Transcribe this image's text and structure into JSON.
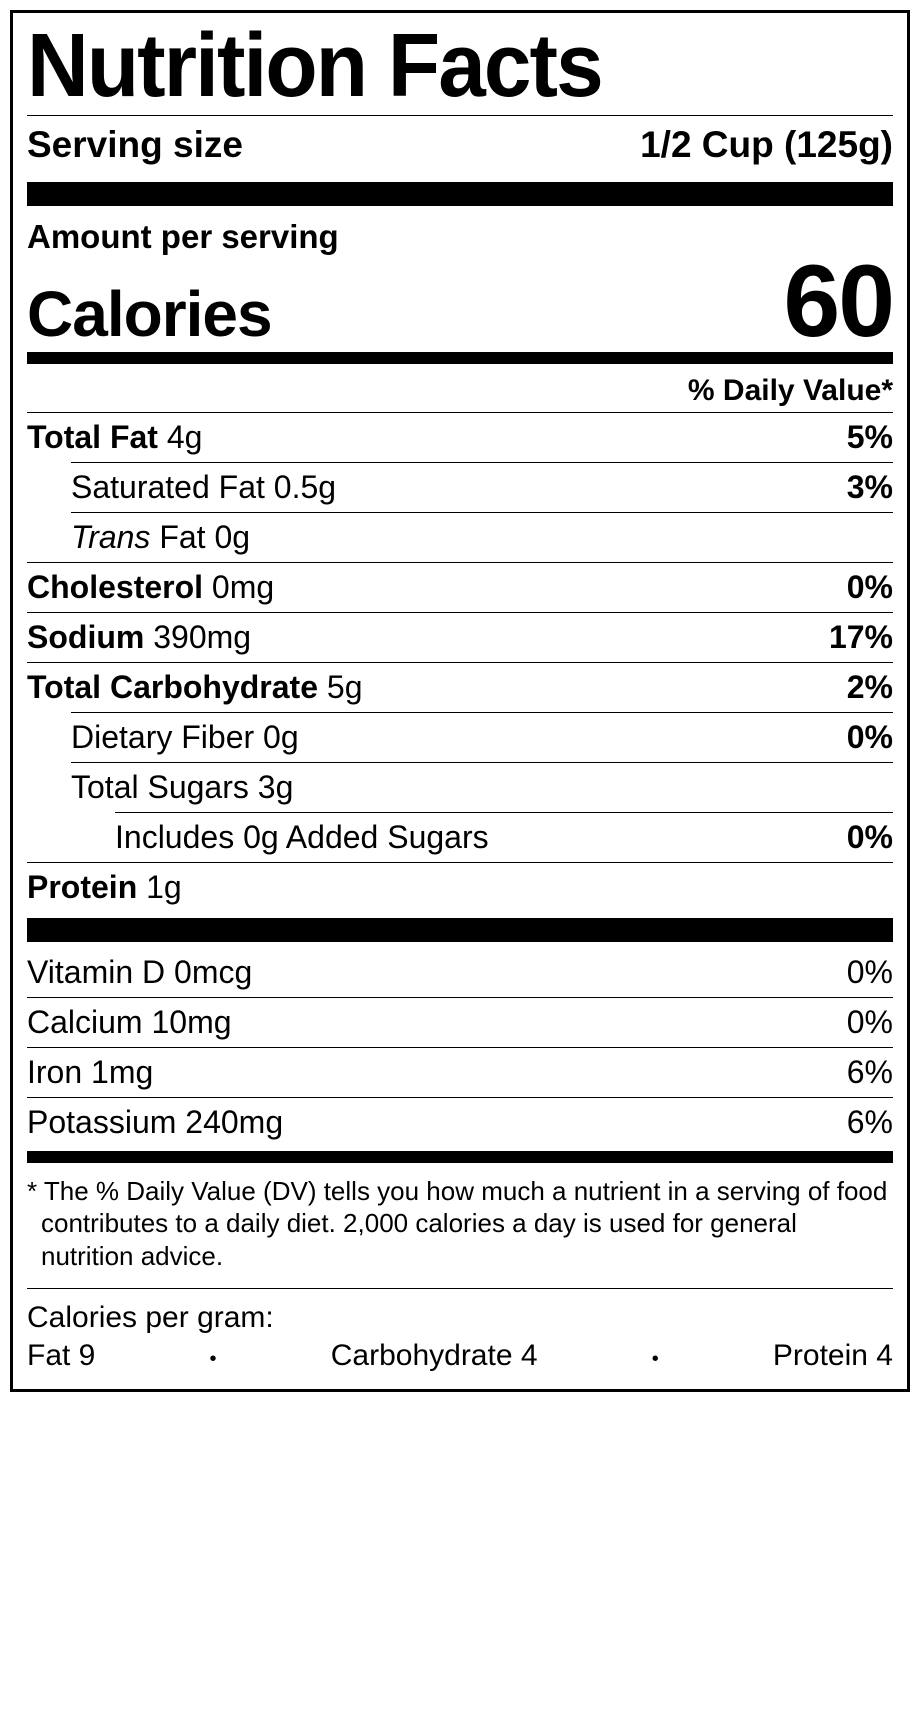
{
  "title": "Nutrition Facts",
  "serving": {
    "label": "Serving size",
    "value": "1/2 Cup (125g)"
  },
  "amountLabel": "Amount per serving",
  "calories": {
    "label": "Calories",
    "value": "60"
  },
  "dvHeader": "% Daily Value*",
  "nutrients": {
    "totalFat": {
      "name": "Total Fat",
      "amount": "4g",
      "dv": "5%"
    },
    "satFat": {
      "name": "Saturated Fat",
      "amount": "0.5g",
      "dv": "3%"
    },
    "transFat": {
      "prefix": "Trans",
      "suffix": " Fat",
      "amount": "0g"
    },
    "cholesterol": {
      "name": "Cholesterol",
      "amount": "0mg",
      "dv": "0%"
    },
    "sodium": {
      "name": "Sodium",
      "amount": "390mg",
      "dv": "17%"
    },
    "totalCarb": {
      "name": "Total Carbohydrate",
      "amount": "5g",
      "dv": "2%"
    },
    "fiber": {
      "name": "Dietary Fiber",
      "amount": "0g",
      "dv": "0%"
    },
    "sugars": {
      "name": "Total Sugars",
      "amount": "3g"
    },
    "addedSugars": {
      "text": "Includes 0g Added Sugars",
      "dv": "0%"
    },
    "protein": {
      "name": "Protein",
      "amount": "1g"
    }
  },
  "vitamins": {
    "vitD": {
      "name": "Vitamin D",
      "amount": "0mcg",
      "dv": "0%"
    },
    "calcium": {
      "name": "Calcium",
      "amount": "10mg",
      "dv": "0%"
    },
    "iron": {
      "name": "Iron",
      "amount": "1mg",
      "dv": "6%"
    },
    "potassium": {
      "name": "Potassium",
      "amount": "240mg",
      "dv": "6%"
    }
  },
  "footnote": "* The % Daily Value (DV) tells you how much a nutrient in a serving of food contributes to a daily diet. 2,000 calories a day is used for general nutrition advice.",
  "calsPerGram": {
    "label": "Calories per gram:",
    "fat": "Fat 9",
    "carb": "Carbohydrate 4",
    "protein": "Protein 4"
  },
  "styling": {
    "borderColor": "#000000",
    "backgroundColor": "#ffffff",
    "titleFontSize": 90,
    "servingFontSize": 37,
    "caloriesLabelFontSize": 64,
    "caloriesValueFontSize": 102,
    "nutrientFontSize": 32,
    "footnoteFontSize": 26,
    "thickBarHeight": 24,
    "mediumBarHeight": 12
  }
}
